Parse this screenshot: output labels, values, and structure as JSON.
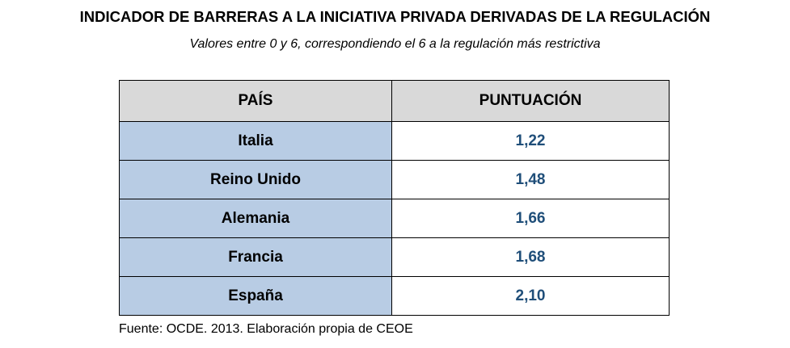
{
  "header": {
    "title": "INDICADOR DE BARRERAS A LA INICIATIVA PRIVADA DERIVADAS DE LA REGULACIÓN",
    "subtitle": "Valores entre 0 y 6, correspondiendo el 6 a la regulación más restrictiva"
  },
  "table": {
    "columns": [
      "PAÍS",
      "PUNTUACIÓN"
    ],
    "rows": [
      [
        "Italia",
        "1,22"
      ],
      [
        "Reino Unido",
        "1,48"
      ],
      [
        "Alemania",
        "1,66"
      ],
      [
        "Francia",
        "1,68"
      ],
      [
        "España",
        "2,10"
      ]
    ]
  },
  "footer": {
    "source": "Fuente: OCDE. 2013. Elaboración propia de CEOE"
  }
}
